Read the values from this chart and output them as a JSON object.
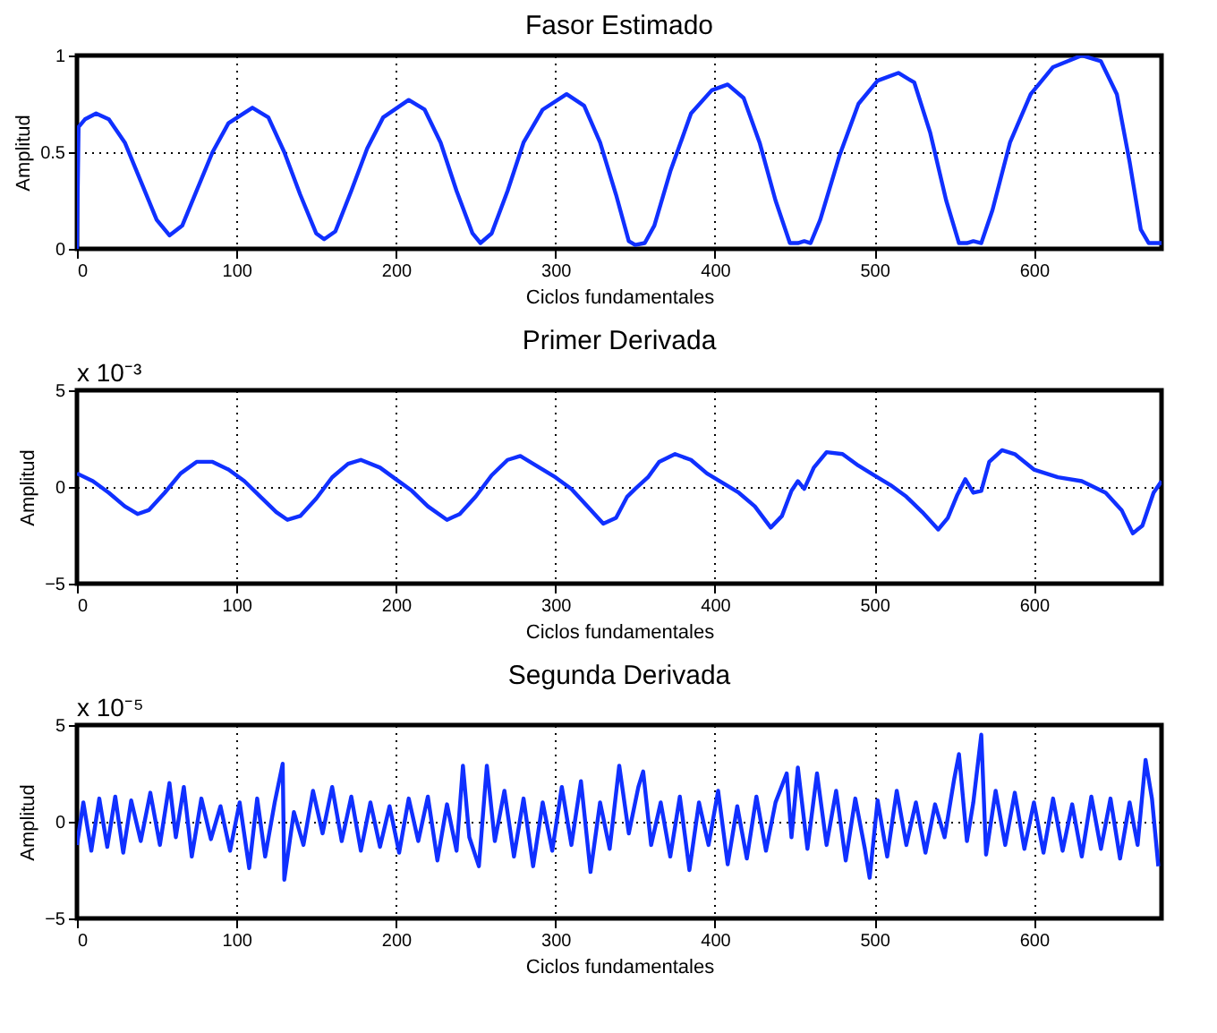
{
  "chart_data": [
    {
      "type": "line",
      "title": "Fasor Estimado",
      "xlabel": "Ciclos fundamentales",
      "ylabel": "Amplitud",
      "xlim": [
        0,
        680
      ],
      "xticks": [
        0,
        100,
        200,
        300,
        400,
        500,
        600
      ],
      "ylim": [
        0,
        1
      ],
      "yticks": [
        0,
        0.5,
        1
      ],
      "grid": true,
      "legend": false,
      "x": [
        0,
        1,
        5,
        12,
        20,
        30,
        40,
        50,
        58,
        66,
        75,
        85,
        95,
        110,
        120,
        130,
        140,
        150,
        155,
        162,
        172,
        182,
        192,
        208,
        218,
        228,
        238,
        248,
        253,
        260,
        270,
        280,
        292,
        307,
        318,
        328,
        338,
        346,
        350,
        356,
        362,
        372,
        385,
        398,
        408,
        418,
        428,
        438,
        447,
        452,
        456,
        460,
        466,
        478,
        490,
        502,
        515,
        525,
        535,
        545,
        553,
        558,
        562,
        567,
        574,
        585,
        598,
        612,
        630,
        642,
        652,
        660,
        667,
        672,
        680
      ],
      "series": [
        {
          "color": "#1030ff",
          "values": [
            0,
            0.63,
            0.67,
            0.7,
            0.67,
            0.55,
            0.35,
            0.15,
            0.07,
            0.12,
            0.3,
            0.5,
            0.65,
            0.73,
            0.68,
            0.5,
            0.28,
            0.08,
            0.05,
            0.09,
            0.3,
            0.52,
            0.68,
            0.77,
            0.72,
            0.55,
            0.3,
            0.08,
            0.03,
            0.08,
            0.3,
            0.55,
            0.72,
            0.8,
            0.74,
            0.55,
            0.28,
            0.04,
            0.02,
            0.03,
            0.12,
            0.4,
            0.7,
            0.82,
            0.85,
            0.78,
            0.55,
            0.25,
            0.03,
            0.03,
            0.04,
            0.03,
            0.15,
            0.48,
            0.75,
            0.87,
            0.91,
            0.86,
            0.6,
            0.25,
            0.03,
            0.03,
            0.04,
            0.03,
            0.2,
            0.55,
            0.8,
            0.94,
            1.0,
            0.97,
            0.8,
            0.45,
            0.1,
            0.03,
            0.03
          ]
        }
      ]
    },
    {
      "type": "line",
      "title": "Primer Derivada",
      "xlabel": "Ciclos fundamentales",
      "ylabel": "Amplitud",
      "xlim": [
        0,
        680
      ],
      "xticks": [
        0,
        100,
        200,
        300,
        400,
        500,
        600
      ],
      "ylim": [
        -5,
        5
      ],
      "yticks": [
        -5,
        0,
        5
      ],
      "grid": true,
      "legend": false,
      "annotations": [
        "x 10⁻³"
      ],
      "x": [
        0,
        10,
        20,
        30,
        38,
        45,
        55,
        65,
        75,
        85,
        95,
        105,
        115,
        125,
        132,
        140,
        150,
        160,
        170,
        178,
        190,
        200,
        210,
        220,
        232,
        240,
        250,
        260,
        270,
        278,
        290,
        300,
        310,
        320,
        330,
        338,
        345,
        350,
        358,
        365,
        375,
        385,
        395,
        405,
        415,
        425,
        435,
        442,
        448,
        452,
        456,
        462,
        470,
        480,
        490,
        500,
        510,
        520,
        530,
        540,
        546,
        552,
        557,
        562,
        567,
        572,
        580,
        588,
        600,
        615,
        630,
        645,
        655,
        662,
        668,
        675,
        680
      ],
      "series": [
        {
          "color": "#1030ff",
          "values": [
            0.7,
            0.3,
            -0.3,
            -1.0,
            -1.4,
            -1.2,
            -0.3,
            0.7,
            1.3,
            1.3,
            0.9,
            0.3,
            -0.5,
            -1.3,
            -1.7,
            -1.5,
            -0.6,
            0.5,
            1.2,
            1.4,
            1.0,
            0.4,
            -0.2,
            -1.0,
            -1.7,
            -1.4,
            -0.5,
            0.6,
            1.4,
            1.6,
            1.0,
            0.5,
            -0.1,
            -1.0,
            -1.9,
            -1.6,
            -0.5,
            -0.1,
            0.5,
            1.3,
            1.7,
            1.4,
            0.7,
            0.2,
            -0.3,
            -1.0,
            -2.1,
            -1.5,
            -0.2,
            0.3,
            -0.1,
            1.0,
            1.8,
            1.7,
            1.1,
            0.6,
            0.1,
            -0.5,
            -1.3,
            -2.2,
            -1.6,
            -0.4,
            0.4,
            -0.3,
            -0.2,
            1.3,
            1.9,
            1.7,
            0.9,
            0.5,
            0.3,
            -0.3,
            -1.2,
            -2.4,
            -2.0,
            -0.3,
            0.3
          ]
        }
      ]
    },
    {
      "type": "line",
      "title": "Segunda Derivada",
      "xlabel": "Ciclos fundamentales",
      "ylabel": "Amplitud",
      "xlim": [
        0,
        680
      ],
      "xticks": [
        0,
        100,
        200,
        300,
        400,
        500,
        600
      ],
      "ylim": [
        -5,
        5
      ],
      "yticks": [
        -5,
        0,
        5
      ],
      "grid": true,
      "legend": false,
      "annotations": [
        "x 10⁻⁵"
      ],
      "x": [
        0,
        4,
        9,
        14,
        19,
        24,
        29,
        34,
        40,
        46,
        52,
        58,
        62,
        67,
        72,
        78,
        84,
        90,
        96,
        102,
        108,
        113,
        118,
        124,
        129,
        130,
        136,
        142,
        148,
        154,
        160,
        166,
        172,
        178,
        184,
        190,
        196,
        202,
        208,
        214,
        220,
        226,
        232,
        238,
        242,
        246,
        252,
        257,
        262,
        268,
        274,
        280,
        286,
        292,
        298,
        304,
        310,
        316,
        322,
        328,
        334,
        340,
        346,
        352,
        355,
        360,
        366,
        372,
        378,
        384,
        390,
        396,
        402,
        408,
        414,
        420,
        426,
        432,
        438,
        445,
        448,
        452,
        458,
        464,
        470,
        476,
        482,
        488,
        494,
        497,
        502,
        508,
        514,
        520,
        526,
        532,
        538,
        544,
        550,
        553,
        558,
        562,
        567,
        570,
        576,
        582,
        588,
        594,
        600,
        606,
        612,
        618,
        624,
        630,
        636,
        642,
        648,
        654,
        660,
        665,
        670,
        674,
        678
      ],
      "series": [
        {
          "color": "#1030ff",
          "values": [
            -1.2,
            1.0,
            -1.5,
            1.2,
            -1.3,
            1.3,
            -1.6,
            1.1,
            -1.0,
            1.5,
            -1.2,
            2.0,
            -0.8,
            1.8,
            -1.8,
            1.2,
            -0.9,
            0.8,
            -1.5,
            1.0,
            -2.4,
            1.2,
            -1.8,
            1.0,
            3.0,
            -3.0,
            0.5,
            -1.2,
            1.6,
            -0.6,
            1.8,
            -1.0,
            1.3,
            -1.5,
            1.0,
            -1.3,
            0.8,
            -1.6,
            1.2,
            -1.0,
            1.3,
            -2.0,
            0.9,
            -1.5,
            2.9,
            -0.8,
            -2.3,
            2.9,
            -1.0,
            1.6,
            -1.8,
            1.2,
            -2.3,
            1.0,
            -1.5,
            1.8,
            -1.2,
            2.1,
            -2.6,
            1.0,
            -1.4,
            2.9,
            -0.6,
            1.8,
            2.6,
            -1.2,
            1.0,
            -1.8,
            1.3,
            -2.5,
            1.0,
            -1.2,
            1.6,
            -2.2,
            0.8,
            -1.9,
            1.3,
            -1.5,
            1.0,
            2.5,
            -0.8,
            2.8,
            -1.4,
            2.5,
            -1.2,
            1.6,
            -2.0,
            1.2,
            -1.4,
            -2.9,
            1.1,
            -1.8,
            1.6,
            -1.2,
            1.0,
            -1.6,
            0.9,
            -0.8,
            2.2,
            3.5,
            -1.0,
            1.0,
            4.5,
            -1.7,
            1.6,
            -1.2,
            1.5,
            -1.4,
            1.0,
            -1.6,
            1.2,
            -1.5,
            0.9,
            -1.8,
            1.3,
            -1.4,
            1.2,
            -1.9,
            1.0,
            -1.2,
            3.2,
            1.2,
            -2.3
          ]
        }
      ]
    }
  ]
}
